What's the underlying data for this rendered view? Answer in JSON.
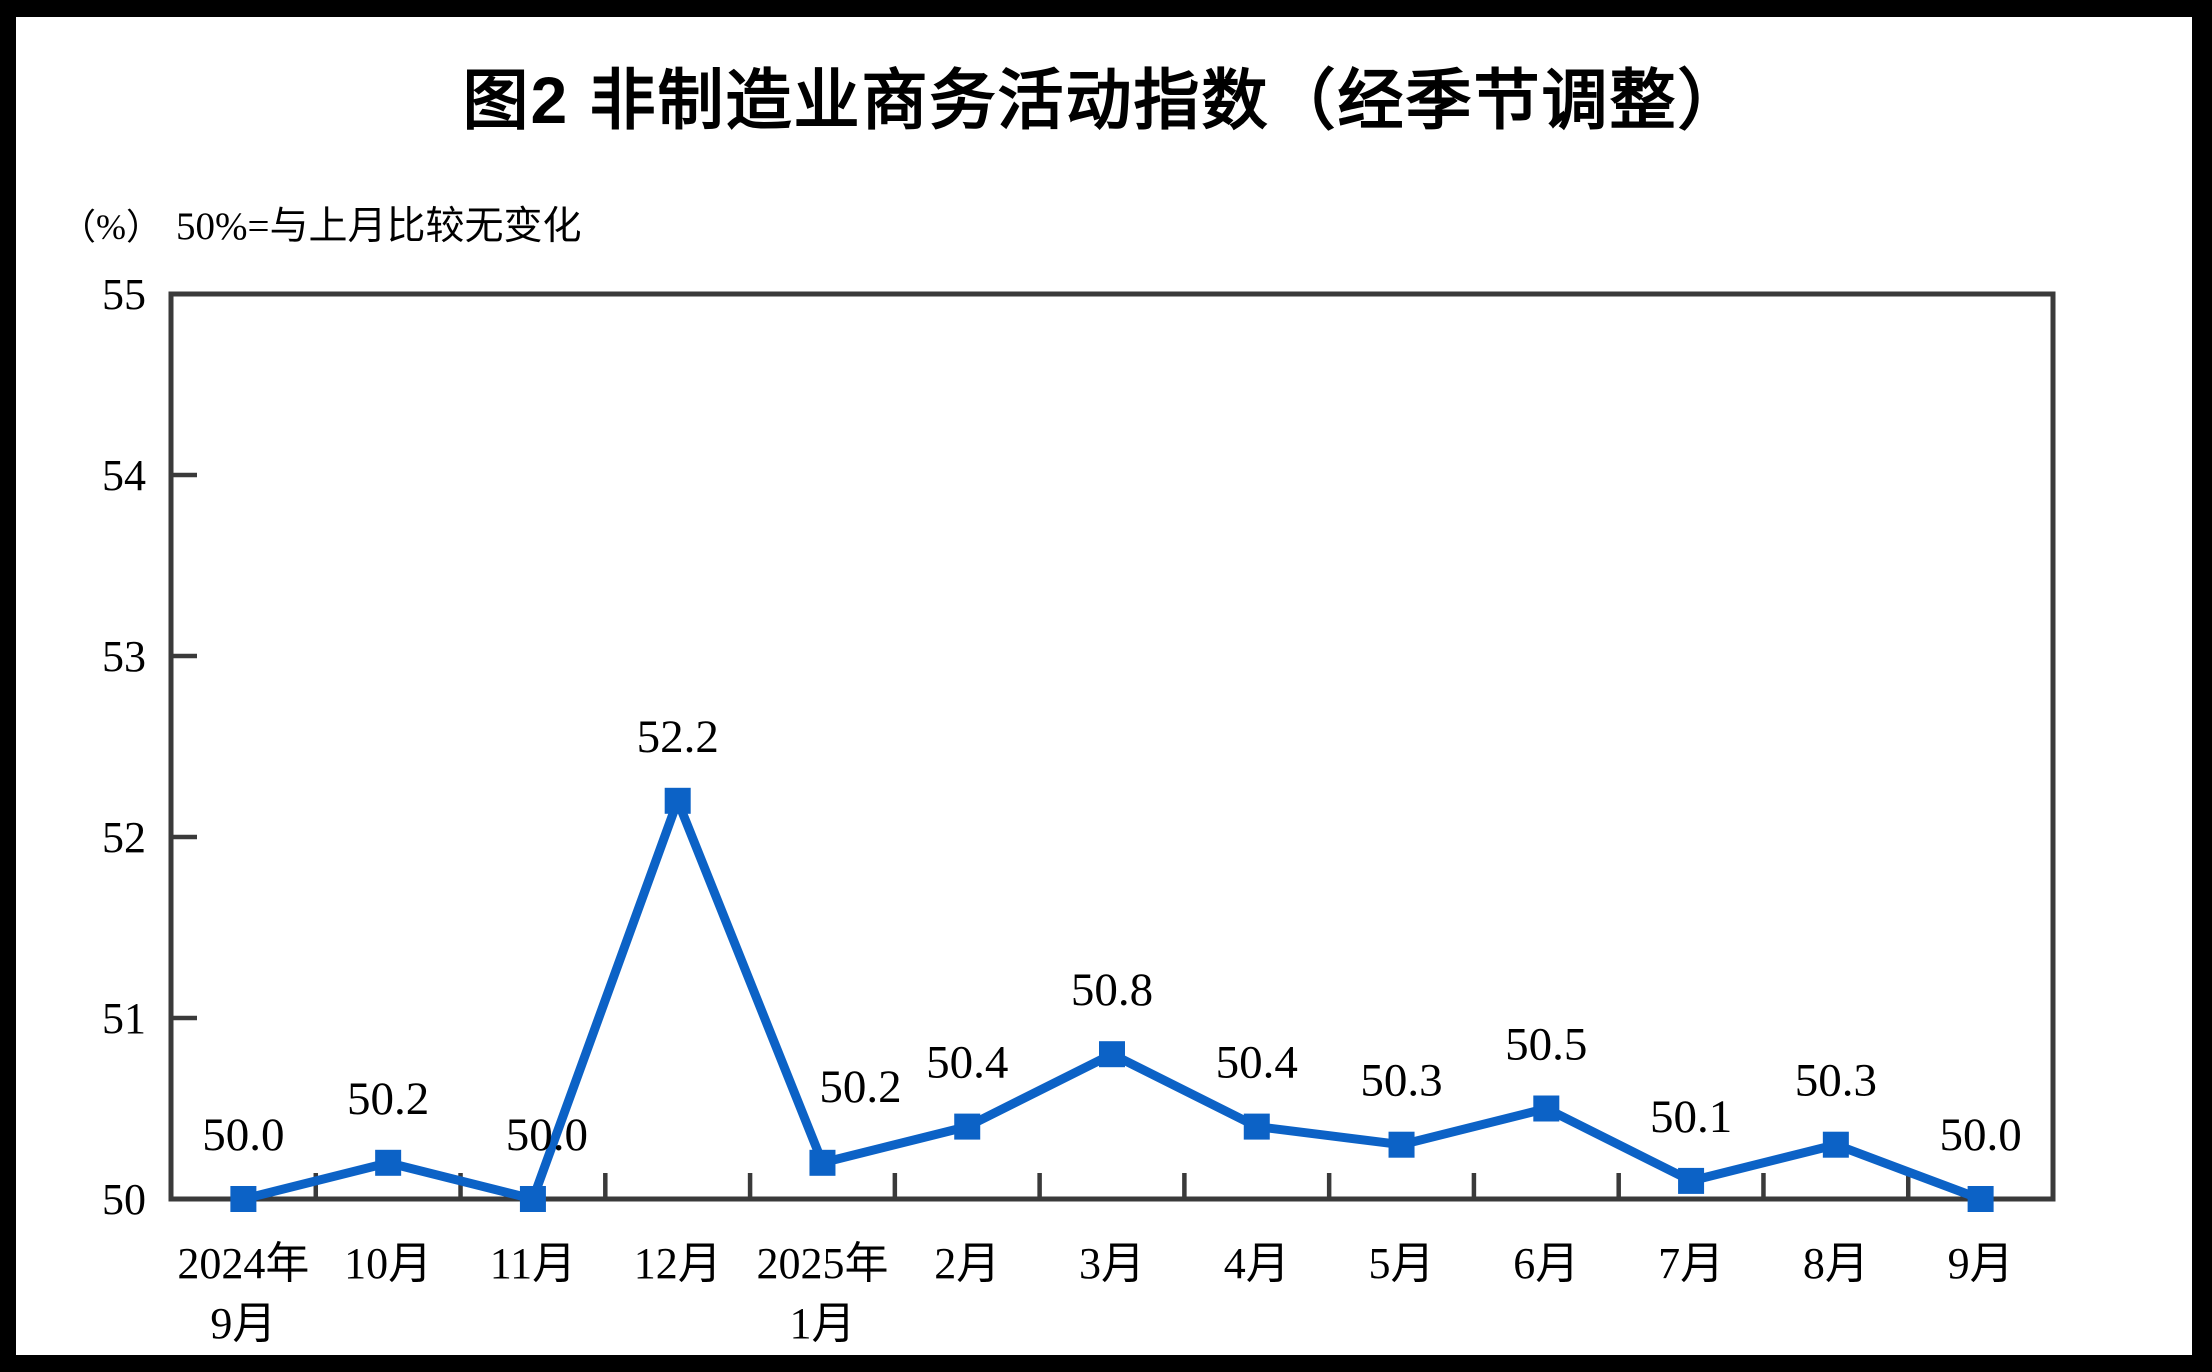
{
  "figure": {
    "title": "图2  非制造业商务活动指数（经季节调整）",
    "unit_label": "（%）",
    "note": "50%=与上月比较无变化"
  },
  "chart_data": {
    "type": "line",
    "title": "图2 非制造业商务活动指数（经季节调整）",
    "subtitle": "（%）50%=与上月比较无变化",
    "categories": [
      [
        "2024年",
        "9月"
      ],
      [
        "10月"
      ],
      [
        "11月"
      ],
      [
        "12月"
      ],
      [
        "2025年",
        "1月"
      ],
      [
        "2月"
      ],
      [
        "3月"
      ],
      [
        "4月"
      ],
      [
        "5月"
      ],
      [
        "6月"
      ],
      [
        "7月"
      ],
      [
        "8月"
      ],
      [
        "9月"
      ]
    ],
    "values": [
      50.0,
      50.2,
      50.0,
      52.2,
      50.2,
      50.4,
      50.8,
      50.4,
      50.3,
      50.5,
      50.1,
      50.3,
      50.0
    ],
    "data_labels": [
      "50.0",
      "50.2",
      "50.0",
      "52.2",
      "50.2",
      "50.4",
      "50.8",
      "50.4",
      "50.3",
      "50.5",
      "50.1",
      "50.3",
      "50.0"
    ],
    "xlabel": "",
    "ylabel": "（%）",
    "ylim": [
      50,
      55
    ],
    "yticks": [
      50,
      51,
      52,
      53,
      54,
      55
    ],
    "ytick_labels": [
      "50",
      "51",
      "52",
      "53",
      "54",
      "55"
    ],
    "grid": false,
    "legend": null,
    "marker": "square",
    "line_color": "#0C62C6",
    "axis_color": "#3a3a3a",
    "label_color": "#000000"
  }
}
